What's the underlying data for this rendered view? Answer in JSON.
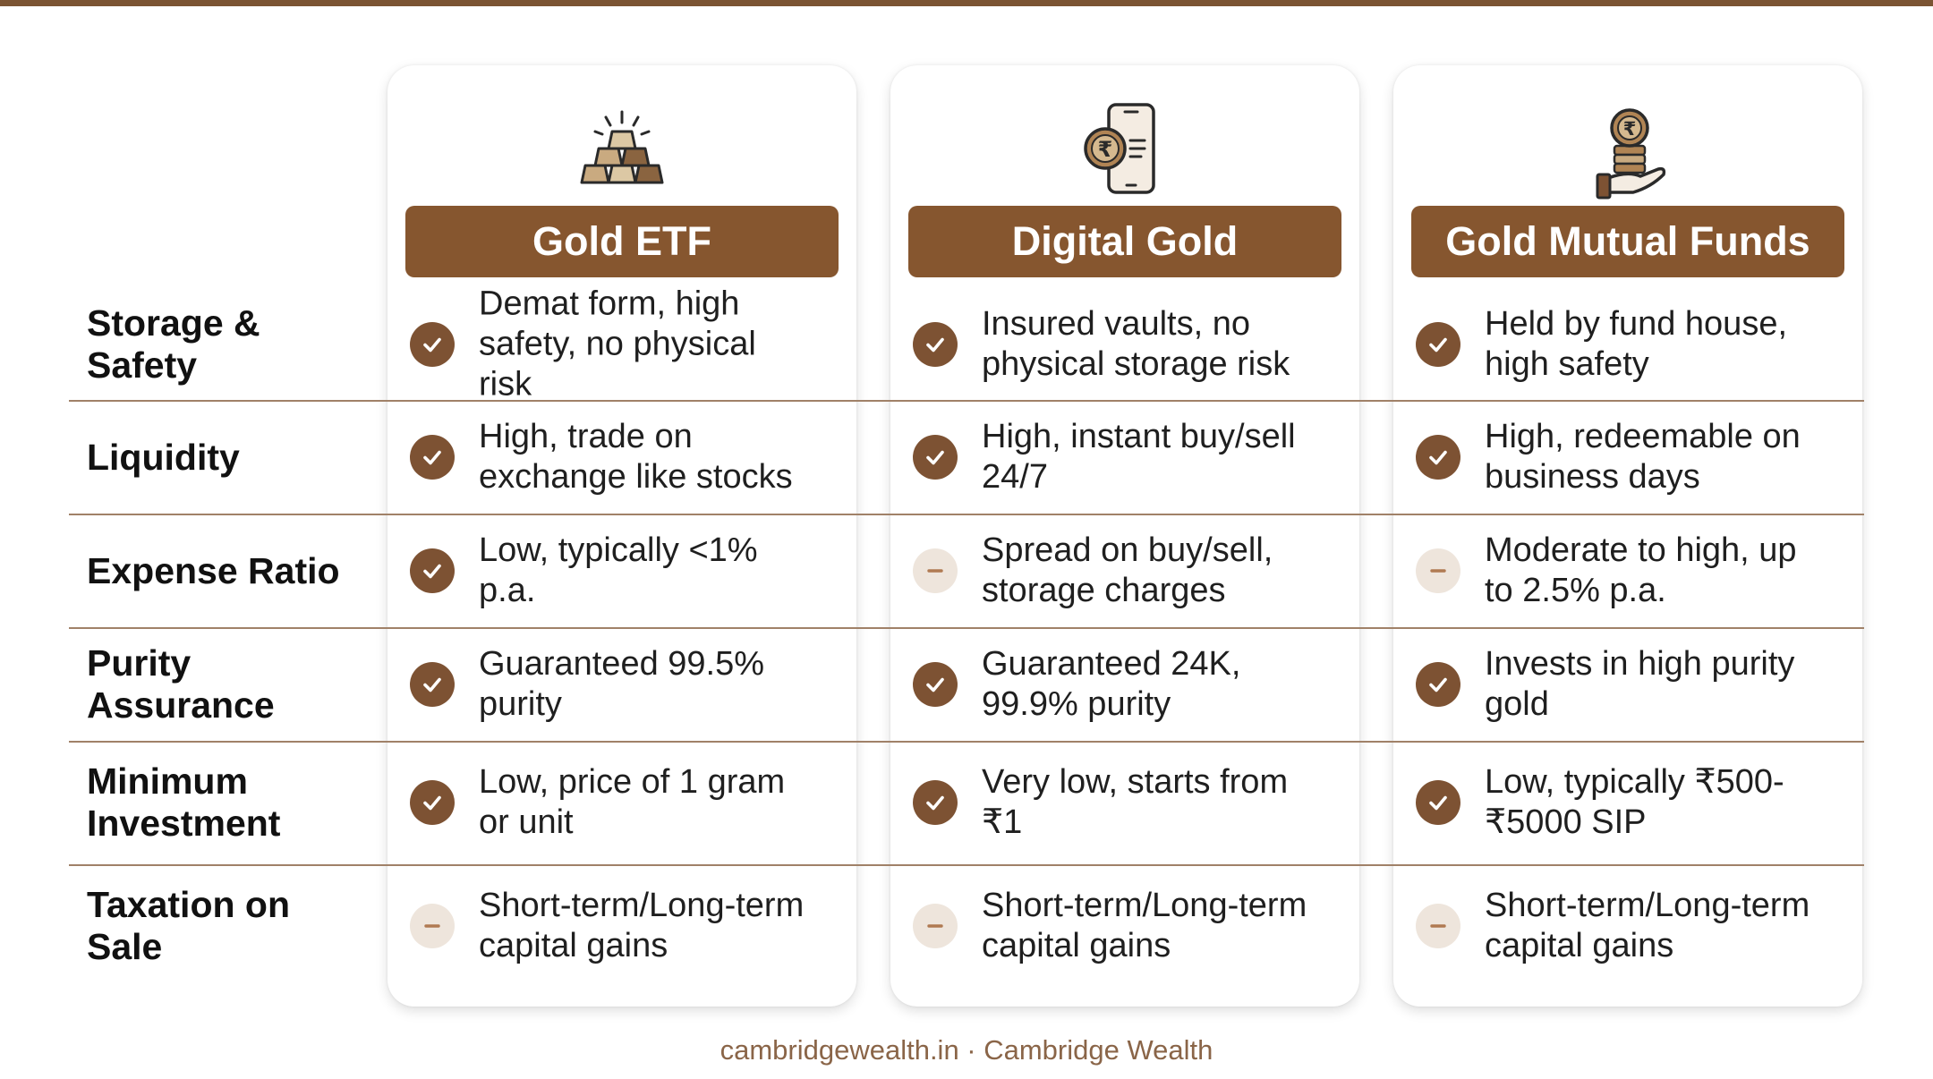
{
  "accent_color": "#86562f",
  "columns": [
    {
      "title": "Gold ETF",
      "icon": "gold-bars-icon"
    },
    {
      "title": "Digital Gold",
      "icon": "phone-rupee-coin-icon"
    },
    {
      "title": "Gold Mutual Funds",
      "icon": "hand-coins-icon"
    }
  ],
  "rows": [
    {
      "label": "Storage & Safety",
      "cells": [
        {
          "status": "check",
          "text": "Demat form, high safety, no physical risk"
        },
        {
          "status": "check",
          "text": "Insured vaults, no physical storage risk"
        },
        {
          "status": "check",
          "text": "Held by fund house, high safety"
        }
      ]
    },
    {
      "label": "Liquidity",
      "cells": [
        {
          "status": "check",
          "text": "High, trade on exchange like stocks"
        },
        {
          "status": "check",
          "text": "High, instant buy/sell 24/7"
        },
        {
          "status": "check",
          "text": "High, redeemable on business days"
        }
      ]
    },
    {
      "label": "Expense Ratio",
      "cells": [
        {
          "status": "check",
          "text": "Low, typically <1% p.a."
        },
        {
          "status": "dash",
          "text": "Spread on buy/sell, storage charges"
        },
        {
          "status": "dash",
          "text": "Moderate to high, up to 2.5% p.a."
        }
      ]
    },
    {
      "label": "Purity Assurance",
      "cells": [
        {
          "status": "check",
          "text": "Guaranteed 99.5% purity"
        },
        {
          "status": "check",
          "text": "Guaranteed 24K, 99.9% purity"
        },
        {
          "status": "check",
          "text": "Invests in high purity gold"
        }
      ]
    },
    {
      "label": "Minimum Investment",
      "cells": [
        {
          "status": "check",
          "text": "Low, price of 1 gram or unit"
        },
        {
          "status": "check",
          "text": "Very low, starts from ₹1"
        },
        {
          "status": "check",
          "text": "Low, typically ₹500-₹5000 SIP"
        }
      ]
    },
    {
      "label": "Taxation on Sale",
      "cells": [
        {
          "status": "dash",
          "text": "Short-term/Long-term capital gains"
        },
        {
          "status": "dash",
          "text": "Short-term/Long-term capital gains"
        },
        {
          "status": "dash",
          "text": "Short-term/Long-term capital gains"
        }
      ]
    }
  ],
  "footer": "cambridgewealth.in · Cambridge Wealth"
}
